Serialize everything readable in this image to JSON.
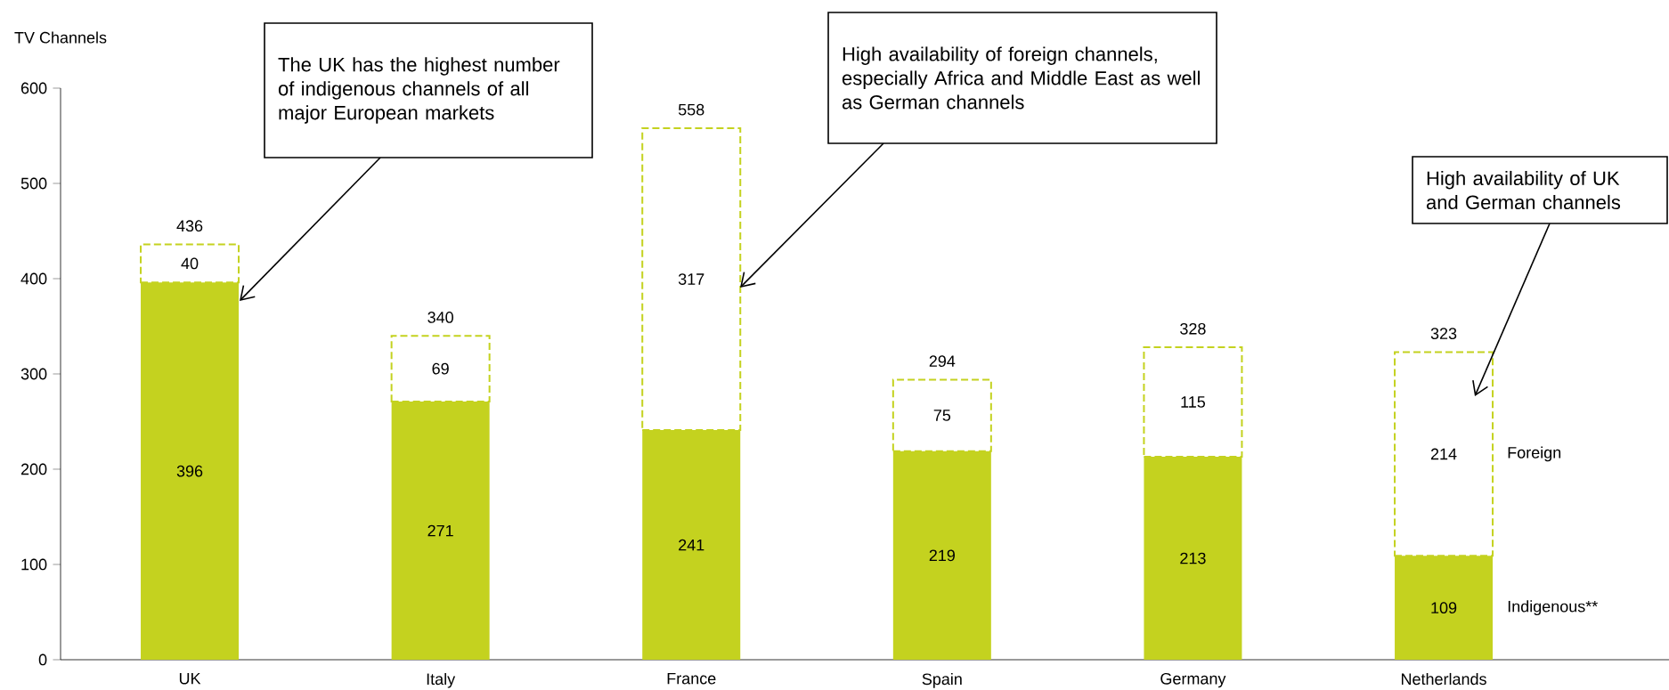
{
  "chart_data": {
    "type": "bar",
    "stacked": true,
    "data_labels": true,
    "ylabel": "TV Channels",
    "categories": [
      "UK",
      "Italy",
      "France",
      "Spain",
      "Germany",
      "Netherlands"
    ],
    "series": [
      {
        "name": "Indigenous**",
        "color": "#c4d21f",
        "line_style": "solid",
        "values": [
          396,
          271,
          241,
          219,
          213,
          109
        ]
      },
      {
        "name": "Foreign",
        "color": "#c4d21f",
        "line_style": "dashed",
        "values": [
          40,
          69,
          317,
          75,
          115,
          214
        ]
      }
    ],
    "totals": [
      "436",
      "340",
      "558",
      "294",
      "328",
      "323"
    ],
    "ylim": [
      0,
      600
    ],
    "yticks": [
      0,
      100,
      200,
      300,
      400,
      500,
      600
    ],
    "annotations": [
      "The UK has the highest number of indigenous channels of all major European markets",
      "High availability of foreign channels, especially Africa and Middle East as well as German channels",
      "High availability of UK and German channels"
    ]
  }
}
